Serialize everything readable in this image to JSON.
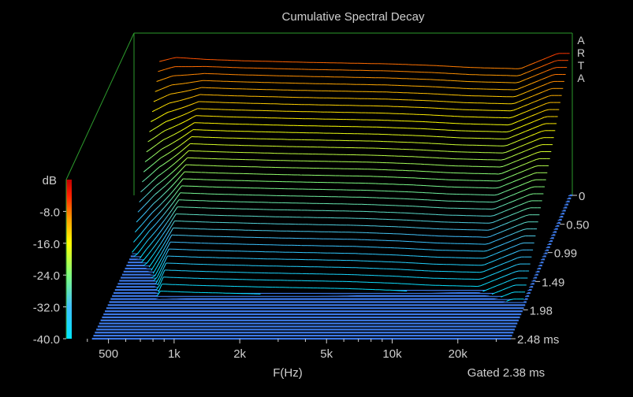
{
  "chart_data": {
    "type": "waterfall",
    "title": "Cumulative Spectral Decay",
    "watermark": "ARTA",
    "xlabel": "F(Hz)",
    "x_scale": "log",
    "xlim": [
      320,
      35000
    ],
    "x_ticks": [
      500,
      1000,
      2000,
      5000,
      10000,
      20000
    ],
    "x_tick_labels": [
      "500",
      "1k",
      "2k",
      "5k",
      "10k",
      "20k"
    ],
    "ylabel": "dB",
    "ylim": [
      -40,
      0
    ],
    "y_ticks": [
      -40,
      -32,
      -24,
      -16,
      -8
    ],
    "y_tick_labels": [
      "-40.0",
      "-32.0",
      "-24.0",
      "-16.0",
      "-8.0"
    ],
    "z_label_unit": "ms",
    "zlim": [
      0,
      2.48
    ],
    "z_ticks": [
      0,
      0.5,
      0.99,
      1.49,
      1.98,
      2.48
    ],
    "z_tick_labels": [
      "0",
      "0.50",
      "0.99",
      "1.49",
      "1.98",
      "2.48 ms"
    ],
    "gated_note": "Gated 2.38 ms",
    "slices": 48,
    "colors": {
      "floor": "#3c78e6",
      "frame": "#2c9a2c",
      "scale": [
        "#00e6ff",
        "#40c0ff",
        "#80ff80",
        "#ffff00",
        "#ffa000",
        "#ff2000",
        "#c00000"
      ]
    },
    "initial_response_db": [
      {
        "f": 420,
        "db": -7
      },
      {
        "f": 500,
        "db": -6
      },
      {
        "f": 700,
        "db": -6.5
      },
      {
        "f": 1000,
        "db": -6.8
      },
      {
        "f": 2000,
        "db": -7.2
      },
      {
        "f": 5000,
        "db": -7.6
      },
      {
        "f": 8000,
        "db": -8
      },
      {
        "f": 12000,
        "db": -8.5
      },
      {
        "f": 20000,
        "db": -8.8
      },
      {
        "f": 30000,
        "db": -5
      }
    ]
  }
}
